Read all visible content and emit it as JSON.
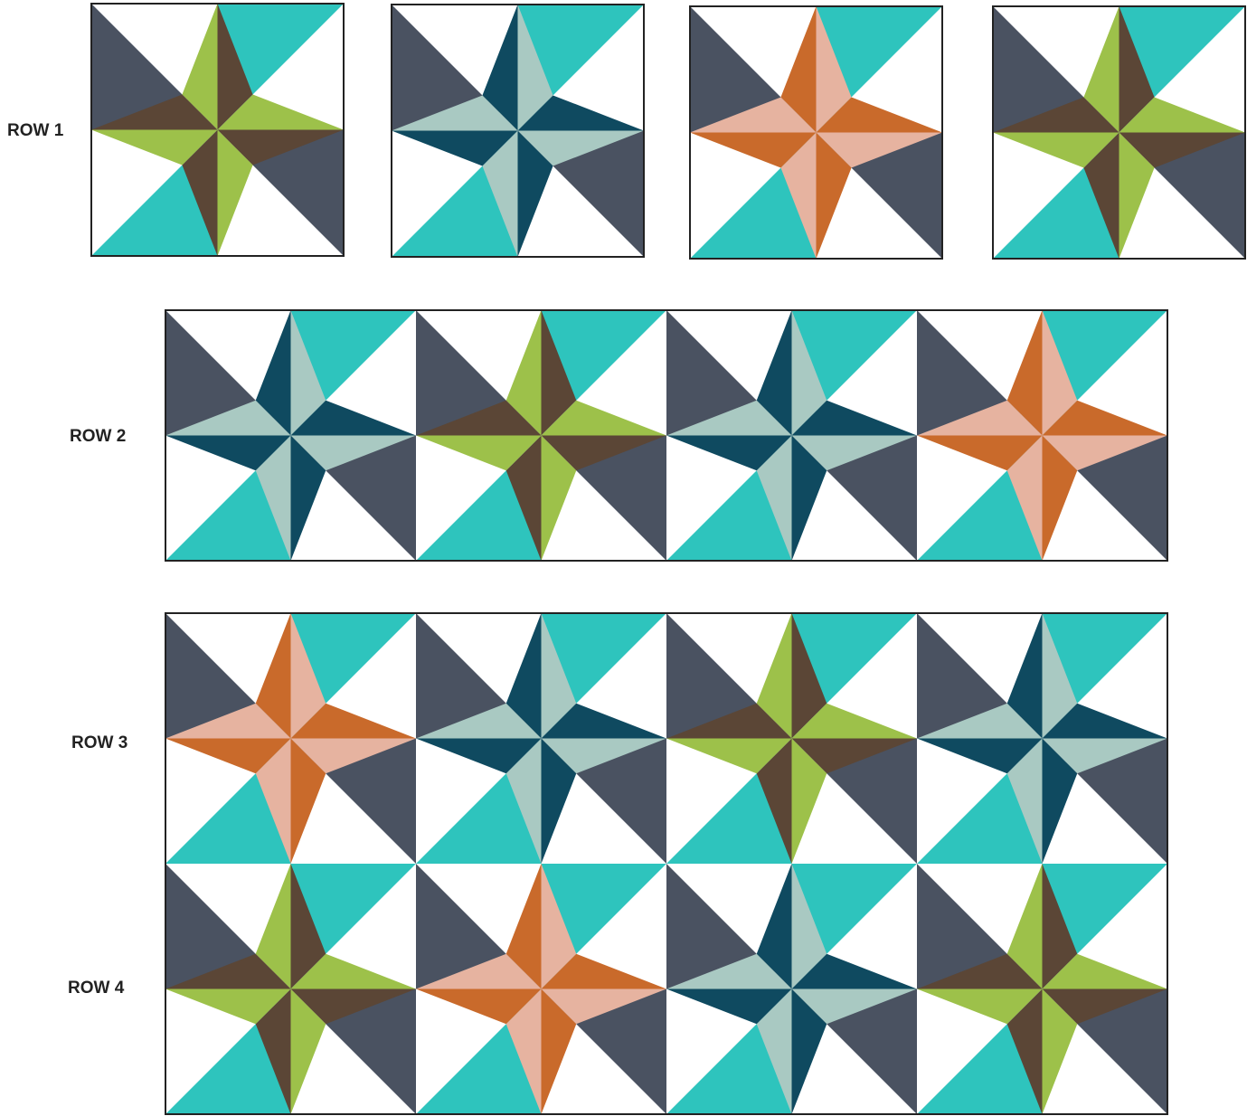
{
  "rows": [
    {
      "label": "ROW 1"
    },
    {
      "label": "ROW 2"
    },
    {
      "label": "ROW 3"
    },
    {
      "label": "ROW 4"
    }
  ]
}
